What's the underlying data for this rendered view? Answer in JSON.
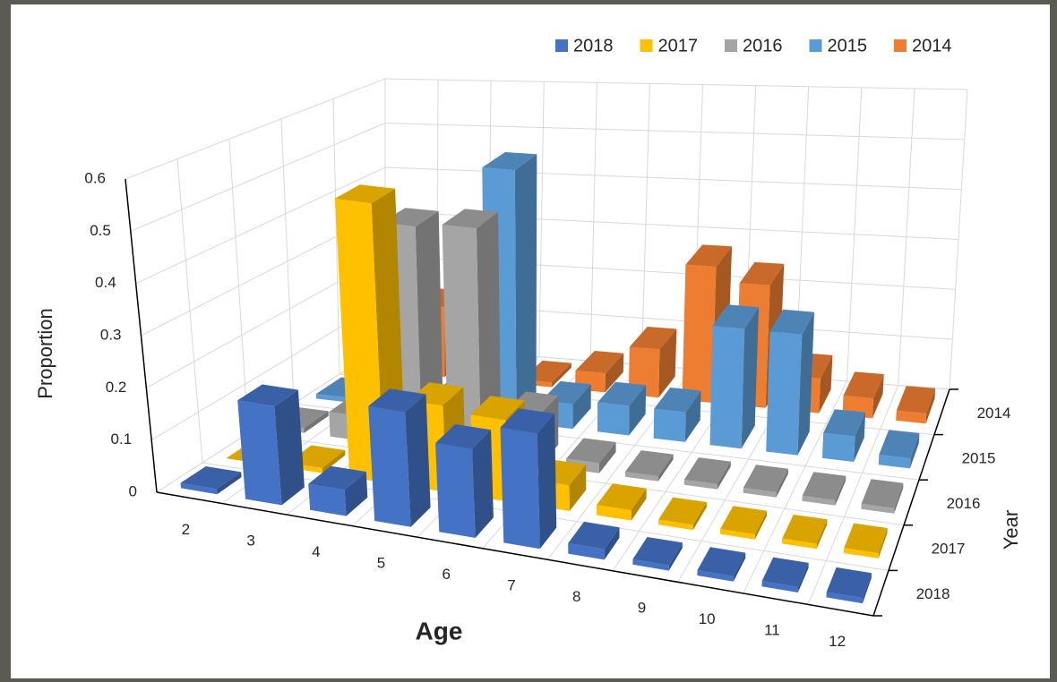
{
  "chart_data": {
    "type": "bar3d",
    "x_label": "Age",
    "y_label": "Year",
    "z_label": "Proportion",
    "categories": [
      "2",
      "3",
      "4",
      "5",
      "6",
      "7",
      "8",
      "9",
      "10",
      "11",
      "12"
    ],
    "series": [
      {
        "name": "2018",
        "color": "#4472c4",
        "values": [
          0.01,
          0.19,
          0.05,
          0.22,
          0.17,
          0.22,
          0.02,
          0.01,
          0.01,
          0.01,
          0.01
        ]
      },
      {
        "name": "2017",
        "color": "#ffc000",
        "values": [
          0,
          0.01,
          0.55,
          0.17,
          0.16,
          0.05,
          0.02,
          0.01,
          0.01,
          0.01,
          0.01
        ]
      },
      {
        "name": "2016",
        "color": "#a5a5a5",
        "values": [
          0.01,
          0.05,
          0.45,
          0.46,
          0.1,
          0.02,
          0.01,
          0.01,
          0.01,
          0.01,
          0.01
        ]
      },
      {
        "name": "2015",
        "color": "#5b9bd5",
        "values": [
          0.01,
          0.02,
          0.03,
          0.52,
          0.05,
          0.06,
          0.06,
          0.24,
          0.24,
          0.05,
          0.02
        ]
      },
      {
        "name": "2014",
        "color": "#ed7d31",
        "values": [
          0.01,
          0.15,
          0.01,
          0.01,
          0.04,
          0.1,
          0.28,
          0.25,
          0.07,
          0.04,
          0.02
        ]
      }
    ],
    "zlim": [
      0,
      0.6
    ],
    "zticks": [
      0,
      0.1,
      0.2,
      0.3,
      0.4,
      0.5,
      0.6
    ],
    "grid": true,
    "legend": "top-right"
  }
}
